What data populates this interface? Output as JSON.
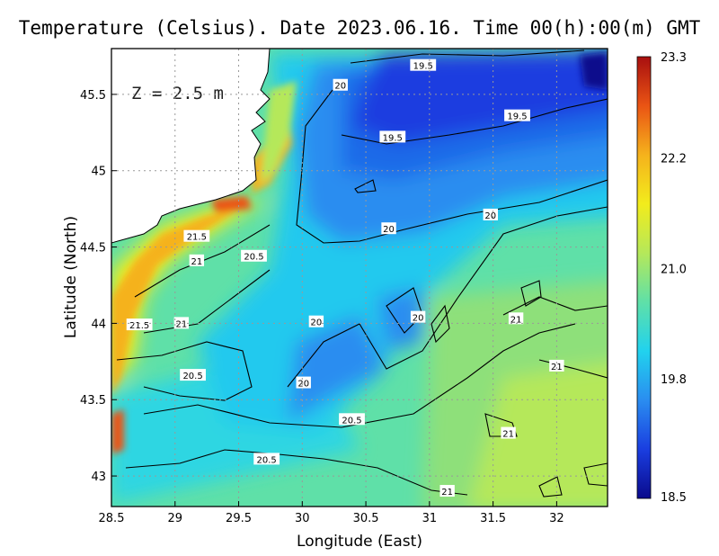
{
  "chart_data": {
    "type": "heatmap",
    "title": "Temperature (Celsius). Date 2023.06.16. Time 00(h):00(m) GMT",
    "xlabel": "Longitude (East)",
    "ylabel": "Latitude (North)",
    "xlim": [
      28.5,
      32.4
    ],
    "ylim": [
      42.8,
      45.8
    ],
    "x_ticks": [
      28.5,
      29,
      29.5,
      30,
      30.5,
      31,
      31.5,
      32
    ],
    "x_tick_labels": [
      "28.5",
      "29",
      "29.5",
      "30",
      "30.5",
      "31",
      "31.5",
      "32"
    ],
    "y_ticks": [
      43,
      43.5,
      44,
      44.5,
      45,
      45.5
    ],
    "y_tick_labels": [
      "43",
      "43.5",
      "44",
      "44.5",
      "45",
      "45.5"
    ],
    "grid": true,
    "annotation": "Z = 2.5 m",
    "colorbar": {
      "min": 18.5,
      "max": 23.3,
      "ticks": [
        23.3,
        22.2,
        21.0,
        19.8,
        18.5
      ],
      "tick_labels": [
        "23.3",
        "22.2",
        "21.0",
        "19.8",
        "18.5"
      ],
      "colormap": [
        "#0a0a8c",
        "#1a3ee0",
        "#2a8df0",
        "#21d2ee",
        "#5fe0a8",
        "#b5e85a",
        "#f2ec1c",
        "#f5b21c",
        "#ea5414",
        "#a80f0f"
      ]
    },
    "contour_labels": [
      {
        "text": "19.5",
        "lon": 30.95,
        "lat": 45.69
      },
      {
        "text": "19.5",
        "lon": 31.69,
        "lat": 45.36
      },
      {
        "text": "19.5",
        "lon": 30.71,
        "lat": 45.22
      },
      {
        "text": "20",
        "lon": 30.3,
        "lat": 45.56
      },
      {
        "text": "20",
        "lon": 31.48,
        "lat": 44.71
      },
      {
        "text": "20",
        "lon": 30.68,
        "lat": 44.62
      },
      {
        "text": "20",
        "lon": 30.11,
        "lat": 44.01
      },
      {
        "text": "20",
        "lon": 30.91,
        "lat": 44.04
      },
      {
        "text": "20",
        "lon": 30.01,
        "lat": 43.61
      },
      {
        "text": "21.5",
        "lon": 29.17,
        "lat": 44.57
      },
      {
        "text": "21",
        "lon": 29.17,
        "lat": 44.41
      },
      {
        "text": "20.5",
        "lon": 29.62,
        "lat": 44.44
      },
      {
        "text": "21.5",
        "lon": 28.72,
        "lat": 43.99
      },
      {
        "text": "21",
        "lon": 29.05,
        "lat": 44.0
      },
      {
        "text": "20.5",
        "lon": 29.14,
        "lat": 43.66
      },
      {
        "text": "21",
        "lon": 31.68,
        "lat": 44.03
      },
      {
        "text": "21",
        "lon": 32.0,
        "lat": 43.72
      },
      {
        "text": "20.5",
        "lon": 30.39,
        "lat": 43.37
      },
      {
        "text": "21",
        "lon": 31.62,
        "lat": 43.28
      },
      {
        "text": "20.5",
        "lon": 29.72,
        "lat": 43.11
      },
      {
        "text": "21",
        "lon": 31.14,
        "lat": 42.9
      }
    ]
  }
}
